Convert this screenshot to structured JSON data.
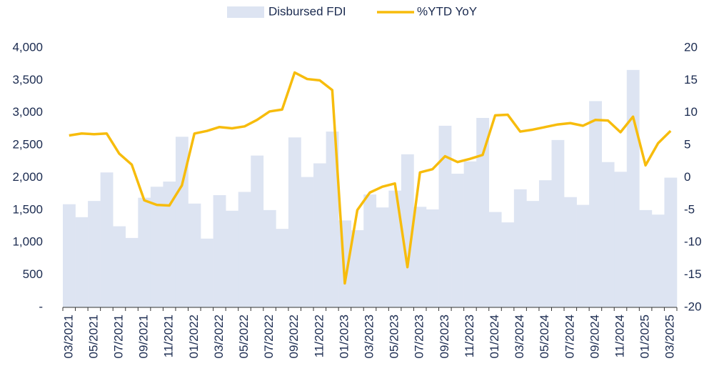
{
  "chart_data": {
    "type": "bar_line",
    "categories": [
      "03/2021",
      null,
      "05/2021",
      null,
      "07/2021",
      null,
      "09/2021",
      null,
      "11/2021",
      null,
      "01/2022",
      null,
      "03/2022",
      null,
      "05/2022",
      null,
      "07/2022",
      null,
      "09/2022",
      null,
      "11/2022",
      null,
      "01/2023",
      null,
      "03/2023",
      null,
      "05/2023",
      null,
      "07/2023",
      null,
      "09/2023",
      null,
      "11/2023",
      null,
      "01/2024",
      null,
      "03/2024",
      null,
      "05/2024",
      null,
      "07/2024",
      null,
      "09/2024",
      null,
      "11/2024",
      null,
      "01/2025",
      null,
      "03/2025"
    ],
    "series": [
      {
        "name": "Disbursed FDI",
        "type": "bar",
        "color": "#dde4f2",
        "values": [
          1590,
          1390,
          1640,
          2080,
          1250,
          1070,
          1690,
          1860,
          1940,
          2630,
          1600,
          1060,
          1730,
          1490,
          1780,
          2340,
          1500,
          1210,
          2620,
          2010,
          2220,
          2710,
          1340,
          1190,
          1740,
          1540,
          1800,
          2360,
          1550,
          1510,
          2800,
          2060,
          2250,
          2920,
          1470,
          1310,
          1820,
          1640,
          1960,
          2580,
          1700,
          1580,
          3180,
          2240,
          2090,
          3660,
          1500,
          1430,
          2000
        ]
      },
      {
        "name": "%YTD YoY",
        "type": "line",
        "axis": "y2",
        "color": "#f7bc0c",
        "values": [
          6.5,
          6.8,
          6.7,
          6.8,
          3.7,
          2,
          -3.5,
          -4.2,
          -4.3,
          -1.2,
          6.8,
          7.2,
          7.8,
          7.6,
          7.9,
          8.9,
          10.2,
          10.5,
          16.2,
          15.2,
          15.0,
          13.5,
          -16.3,
          -5,
          -2.3,
          -1.4,
          -0.9,
          -13.8,
          0.8,
          1.3,
          3.3,
          2.4,
          2.9,
          3.5,
          9.6,
          9.7,
          7.1,
          7.4,
          7.8,
          8.2,
          8.4,
          8.0,
          8.9,
          8.8,
          7.0,
          9.4,
          1.9,
          5.3,
          7.2
        ]
      }
    ],
    "ylim": [
      0,
      4000
    ],
    "yticks": [
      {
        "value": 0,
        "label": "-"
      },
      500,
      {
        "value": 1000,
        "label": "1,000"
      },
      {
        "value": 1500,
        "label": "1,500"
      },
      {
        "value": 2000,
        "label": "2,000"
      },
      {
        "value": 2500,
        "label": "2,500"
      },
      {
        "value": 3000,
        "label": "3,000"
      },
      {
        "value": 3500,
        "label": "3,500"
      },
      {
        "value": 4000,
        "label": "4,000"
      }
    ],
    "y2lim": [
      -20,
      20
    ],
    "y2ticks": [
      -20,
      -15,
      -10,
      -5,
      0,
      5,
      10,
      15,
      20
    ],
    "legend": "top"
  }
}
